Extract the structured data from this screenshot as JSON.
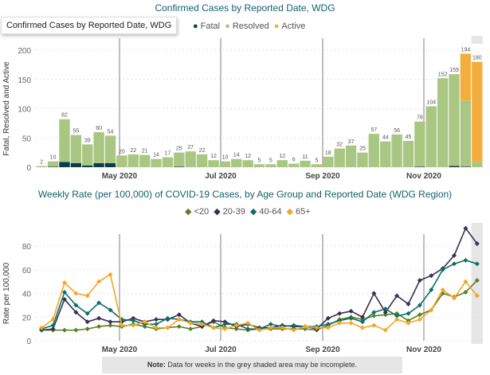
{
  "tooltip": "Confirmed Cases by Reported Date, WDG",
  "colors": {
    "fatal": "#0b3d4c",
    "resolved": "#a9c783",
    "active": "#f4ae3d",
    "u20": "#5b7f22",
    "a20_39": "#3a2f52",
    "a40_64": "#0e6f6a",
    "a65": "#f6a623"
  },
  "note": {
    "bold": "Note:",
    "text": " Data for weeks in the grey shaded area may be incomplete."
  },
  "chart_data": [
    {
      "type": "bar",
      "stacked": true,
      "title": "Confirmed Cases by Reported Date, WDG",
      "ylabel": "Fatal, Resolved and Active",
      "ylim": [
        0,
        210
      ],
      "yticks": [
        0,
        50,
        100,
        150,
        200
      ],
      "xticks": [
        "May 2020",
        "Jul 2020",
        "Sep 2020",
        "Nov 2020"
      ],
      "totals": [
        2,
        10,
        82,
        55,
        39,
        60,
        54,
        20,
        22,
        21,
        14,
        17,
        25,
        27,
        22,
        12,
        10,
        14,
        12,
        5,
        5,
        12,
        6,
        11,
        5,
        18,
        32,
        37,
        25,
        57,
        44,
        56,
        45,
        78,
        104,
        152,
        159,
        194,
        180
      ],
      "series": [
        {
          "name": "Fatal",
          "values": [
            0,
            1,
            9,
            7,
            3,
            7,
            7,
            0,
            0,
            0,
            0,
            0,
            1,
            0,
            0,
            0,
            0,
            0,
            0,
            0,
            0,
            0,
            0,
            0,
            0,
            0,
            0,
            0,
            0,
            0,
            0,
            0,
            0,
            1,
            0,
            0,
            2,
            1,
            0
          ]
        },
        {
          "name": "Resolved",
          "values": [
            2,
            9,
            73,
            48,
            36,
            53,
            47,
            20,
            22,
            21,
            14,
            17,
            24,
            27,
            22,
            12,
            10,
            14,
            12,
            5,
            5,
            12,
            6,
            11,
            5,
            18,
            32,
            37,
            25,
            57,
            44,
            56,
            45,
            77,
            104,
            152,
            157,
            113,
            9
          ]
        },
        {
          "name": "Active",
          "values": [
            0,
            0,
            0,
            0,
            0,
            0,
            0,
            0,
            0,
            0,
            0,
            0,
            0,
            0,
            0,
            0,
            0,
            0,
            0,
            0,
            0,
            0,
            0,
            0,
            0,
            0,
            0,
            0,
            0,
            0,
            0,
            0,
            0,
            0,
            0,
            0,
            0,
            80,
            171
          ]
        }
      ],
      "legend": "top",
      "grid": true
    },
    {
      "type": "line",
      "title": "Weekly Rate (per 100,000) of COVID-19 Cases, by Age Group and Reported Date (WDG Region)",
      "ylabel": "Rate per 100,000",
      "ylim": [
        0,
        100
      ],
      "yticks": [
        0,
        20,
        40,
        60,
        80
      ],
      "xticks": [
        "May 2020",
        "Jul 2020",
        "Sep 2020",
        "Nov 2020"
      ],
      "series": [
        {
          "name": "<20",
          "values": [
            9,
            9,
            9,
            9,
            10,
            12,
            13,
            12,
            14,
            12,
            10,
            11,
            12,
            10,
            12,
            16,
            11,
            10,
            9,
            10,
            10,
            10,
            10,
            10,
            9,
            13,
            18,
            20,
            18,
            21,
            22,
            23,
            17,
            22,
            26,
            40,
            37,
            41,
            51
          ]
        },
        {
          "name": "20-39",
          "values": [
            9,
            10,
            35,
            24,
            16,
            19,
            16,
            16,
            19,
            16,
            18,
            18,
            22,
            15,
            12,
            17,
            16,
            12,
            14,
            11,
            11,
            13,
            12,
            12,
            10,
            19,
            23,
            25,
            20,
            40,
            24,
            38,
            31,
            51,
            55,
            61,
            72,
            95,
            82
          ]
        },
        {
          "name": "40-64",
          "values": [
            10,
            13,
            41,
            30,
            23,
            32,
            26,
            18,
            17,
            14,
            14,
            19,
            18,
            16,
            16,
            11,
            14,
            14,
            10,
            10,
            14,
            12,
            13,
            12,
            12,
            14,
            17,
            19,
            16,
            24,
            27,
            21,
            23,
            30,
            43,
            60,
            65,
            68,
            65
          ]
        },
        {
          "name": "65+",
          "values": [
            11,
            18,
            49,
            40,
            38,
            50,
            56,
            13,
            13,
            16,
            11,
            11,
            18,
            15,
            14,
            11,
            10,
            13,
            15,
            9,
            11,
            11,
            9,
            12,
            11,
            11,
            15,
            15,
            11,
            13,
            9,
            18,
            15,
            18,
            26,
            43,
            36,
            50,
            38
          ]
        }
      ],
      "legend": "top",
      "grid": true
    }
  ]
}
